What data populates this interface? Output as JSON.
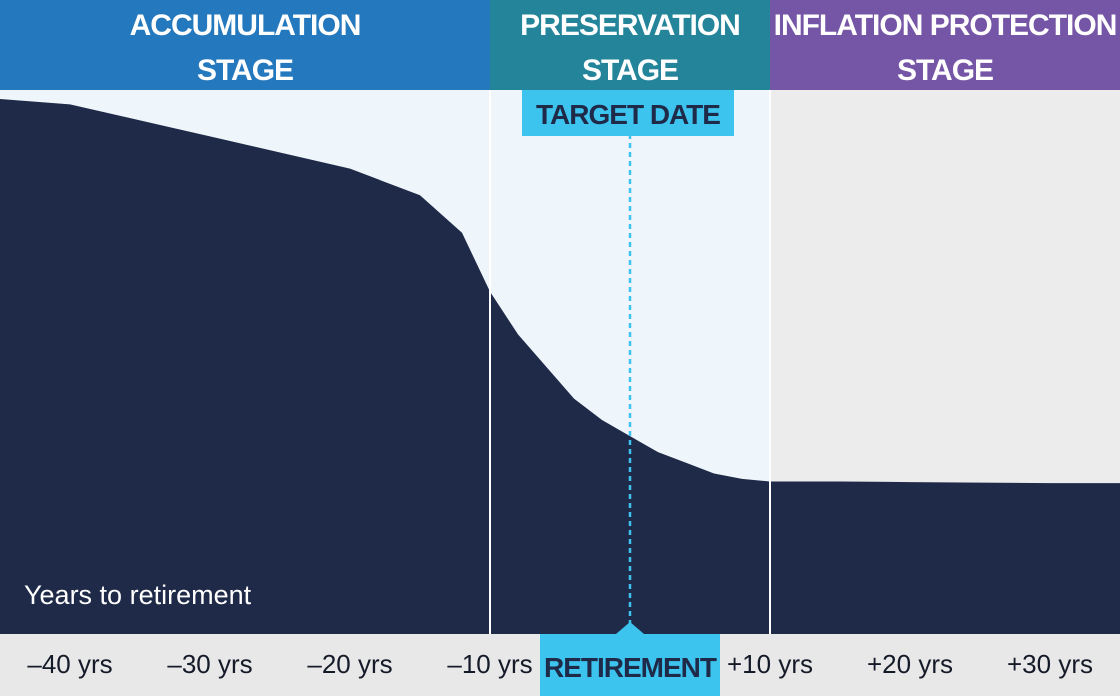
{
  "colors": {
    "accumulation_header": "#2478bd",
    "preservation_header": "#23849a",
    "inflation_header": "#7555a5",
    "curve_fill": "#1f2a48",
    "light_panel": "#eef5fb",
    "grey_panel": "#ececec",
    "marker": "#3cc3ee",
    "axis_strip": "#e8e8e8"
  },
  "chart_data": {
    "type": "area",
    "title": "",
    "xlabel": "Years to retirement",
    "ylabel": "",
    "xlim": [
      -45,
      35
    ],
    "ylim": [
      0,
      100
    ],
    "x": [
      -45,
      -40,
      -35,
      -30,
      -25,
      -20,
      -18,
      -15,
      -12,
      -10,
      -8,
      -6,
      -4,
      -2,
      0,
      2,
      4,
      6,
      8,
      10,
      15,
      20,
      25,
      30,
      35
    ],
    "y": [
      100,
      99,
      96,
      93,
      90,
      87,
      85,
      82,
      75,
      64,
      56,
      50,
      44,
      40,
      37,
      34,
      32,
      30,
      29,
      28.5,
      28.5,
      28.4,
      28.3,
      28.2,
      28.2
    ],
    "ticks": [
      {
        "value": -40,
        "label": "–40 yrs"
      },
      {
        "value": -30,
        "label": "–30 yrs"
      },
      {
        "value": -20,
        "label": "–20 yrs"
      },
      {
        "value": -10,
        "label": "–10 yrs"
      },
      {
        "value": 10,
        "label": "+10 yrs"
      },
      {
        "value": 20,
        "label": "+20 yrs"
      },
      {
        "value": 30,
        "label": "+30 yrs"
      }
    ],
    "stages": [
      {
        "name": "accumulation",
        "line1": "ACCUMULATION",
        "line2": "STAGE",
        "start": -45,
        "end": -10
      },
      {
        "name": "preservation",
        "line1": "PRESERVATION",
        "line2": "STAGE",
        "start": -10,
        "end": 10
      },
      {
        "name": "inflation",
        "line1": "INFLATION PROTECTION",
        "line2": "STAGE",
        "start": 10,
        "end": 35
      }
    ],
    "annotations": {
      "target_date": {
        "label": "TARGET DATE",
        "x": 0
      },
      "retirement": {
        "label": "RETIREMENT",
        "x": 0
      }
    }
  }
}
